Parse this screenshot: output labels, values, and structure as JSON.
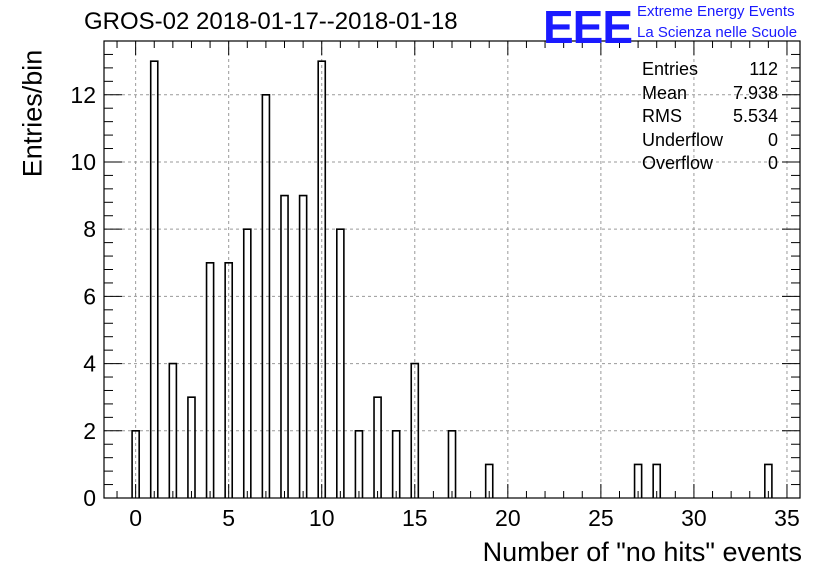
{
  "header": {
    "title": "GROS-02 2018-01-17--2018-01-18",
    "logo_text": "EEE",
    "logo_line1": "Extreme Energy Events",
    "logo_line2": "La Scienza nelle Scuole"
  },
  "stats": [
    {
      "label": "Entries",
      "value": "112"
    },
    {
      "label": "Mean",
      "value": "7.938"
    },
    {
      "label": "RMS",
      "value": "5.534"
    },
    {
      "label": "Underflow",
      "value": "0"
    },
    {
      "label": "Overflow",
      "value": "0"
    }
  ],
  "chart_data": {
    "type": "bar",
    "title": "GROS-02 2018-01-17--2018-01-18",
    "xlabel": "Number of \"no hits\" events",
    "ylabel": "Entries/bin",
    "xlim": [
      -1.7,
      35.7
    ],
    "ylim": [
      0,
      13.6
    ],
    "grid": true,
    "x_ticks": [
      0,
      5,
      10,
      15,
      20,
      25,
      30,
      35
    ],
    "y_ticks": [
      0,
      2,
      4,
      6,
      8,
      10,
      12
    ],
    "bin_width": 0.38,
    "x": [
      0,
      1,
      2,
      3,
      4,
      5,
      6,
      7,
      8,
      9,
      10,
      11,
      12,
      13,
      14,
      15,
      17,
      19,
      27,
      28,
      34
    ],
    "values": [
      2,
      13,
      4,
      3,
      7,
      7,
      8,
      12,
      9,
      9,
      13,
      8,
      2,
      3,
      2,
      4,
      2,
      1,
      1,
      1,
      1
    ]
  },
  "colors": {
    "bar_stroke": "#000000",
    "grid": "#9a9a9a",
    "logo": "#1a1aff"
  }
}
